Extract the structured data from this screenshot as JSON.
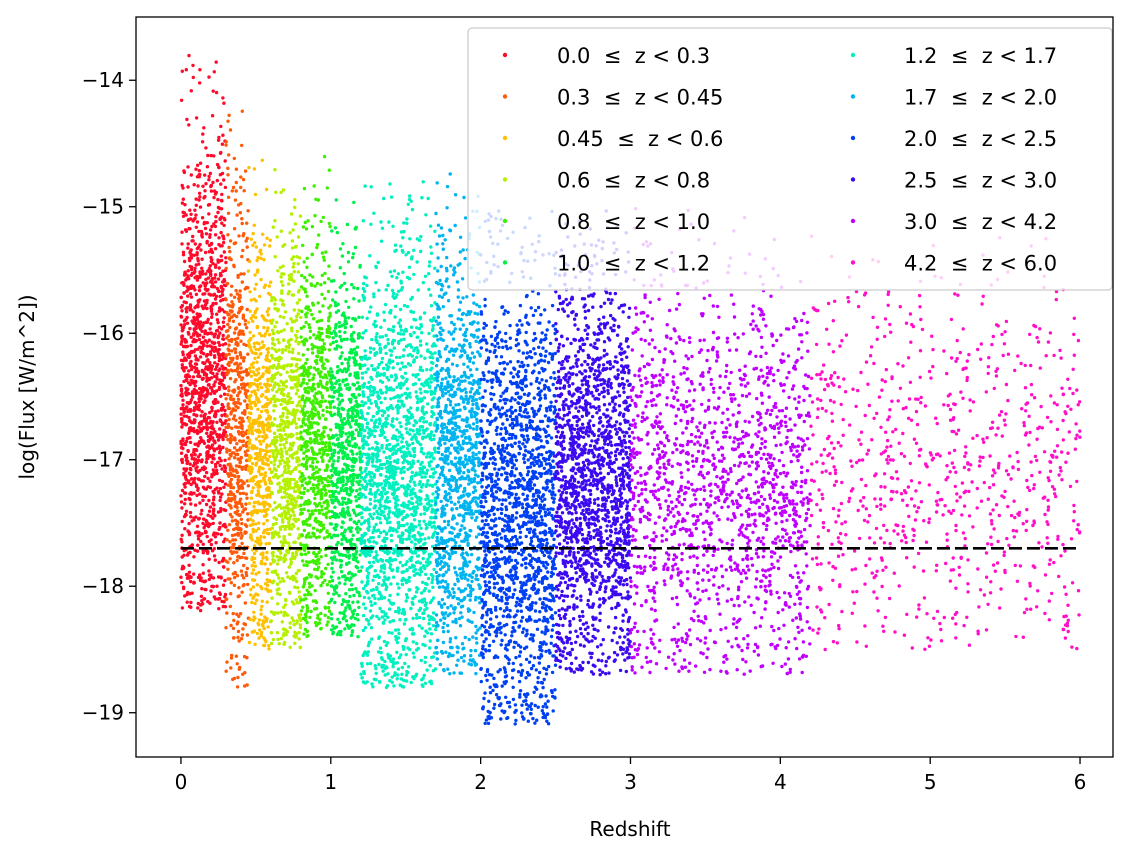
{
  "chart_data": {
    "type": "scatter",
    "title": "",
    "xlabel": "Redshift",
    "ylabel": "log(Flux [W/m^2])",
    "xlim": [
      -0.3,
      6.22
    ],
    "ylim": [
      -19.35,
      -13.5
    ],
    "x_ticks": [
      0,
      1,
      2,
      3,
      4,
      5,
      6
    ],
    "x_tick_labels": [
      "0",
      "1",
      "2",
      "3",
      "4",
      "5",
      "6"
    ],
    "y_ticks": [
      -14,
      -15,
      -16,
      -17,
      -18,
      -19
    ],
    "y_tick_labels": [
      "−14",
      "−15",
      "−16",
      "−17",
      "−18",
      "−19"
    ],
    "grid": false,
    "legend": {
      "placement": "top-right",
      "columns": 2
    },
    "threshold_line": {
      "y": -17.7,
      "x_range": [
        0,
        6
      ],
      "style": "dashed",
      "color": "#000000"
    },
    "series": [
      {
        "name": "0.0  ≤  z < 0.3",
        "z_range": [
          0.0,
          0.3
        ],
        "color": "#ff0a2a",
        "density": "very high",
        "flux_range": [
          -18.2,
          -13.8
        ]
      },
      {
        "name": "0.3  ≤  z < 0.45",
        "z_range": [
          0.3,
          0.45
        ],
        "color": "#ff5a0a",
        "density": "high",
        "flux_range": [
          -18.8,
          -14.2
        ]
      },
      {
        "name": "0.45  ≤  z < 0.6",
        "z_range": [
          0.45,
          0.6
        ],
        "color": "#ffc000",
        "density": "high",
        "flux_range": [
          -18.5,
          -14.6
        ]
      },
      {
        "name": "0.6  ≤  z < 0.8",
        "z_range": [
          0.6,
          0.8
        ],
        "color": "#b4f000",
        "density": "high",
        "flux_range": [
          -18.5,
          -14.6
        ]
      },
      {
        "name": "0.8  ≤  z < 1.0",
        "z_range": [
          0.8,
          1.0
        ],
        "color": "#3ef000",
        "density": "high",
        "flux_range": [
          -18.4,
          -14.6
        ]
      },
      {
        "name": "1.0  ≤  z < 1.2",
        "z_range": [
          1.0,
          1.2
        ],
        "color": "#00f04a",
        "density": "high",
        "flux_range": [
          -18.4,
          -14.9
        ]
      },
      {
        "name": "1.2  ≤  z < 1.7",
        "z_range": [
          1.2,
          1.7
        ],
        "color": "#00f0c0",
        "density": "high",
        "flux_range": [
          -18.8,
          -14.8
        ]
      },
      {
        "name": "1.7  ≤  z < 2.0",
        "z_range": [
          1.7,
          2.0
        ],
        "color": "#00b4f0",
        "density": "high",
        "flux_range": [
          -18.7,
          -14.7
        ]
      },
      {
        "name": "2.0  ≤  z < 2.5",
        "z_range": [
          2.0,
          2.5
        ],
        "color": "#0040f5",
        "density": "high",
        "flux_range": [
          -19.1,
          -15.0
        ]
      },
      {
        "name": "2.5  ≤  z < 3.0",
        "z_range": [
          2.5,
          3.0
        ],
        "color": "#3c0af0",
        "density": "high",
        "flux_range": [
          -18.7,
          -15.0
        ]
      },
      {
        "name": "3.0  ≤  z < 4.2",
        "z_range": [
          3.0,
          4.2
        ],
        "color": "#c000ff",
        "density": "medium",
        "flux_range": [
          -18.7,
          -15.0
        ]
      },
      {
        "name": "4.2  ≤  z < 6.0",
        "z_range": [
          4.2,
          6.0
        ],
        "color": "#ff10c8",
        "density": "low",
        "flux_range": [
          -18.5,
          -15.0
        ]
      }
    ]
  }
}
